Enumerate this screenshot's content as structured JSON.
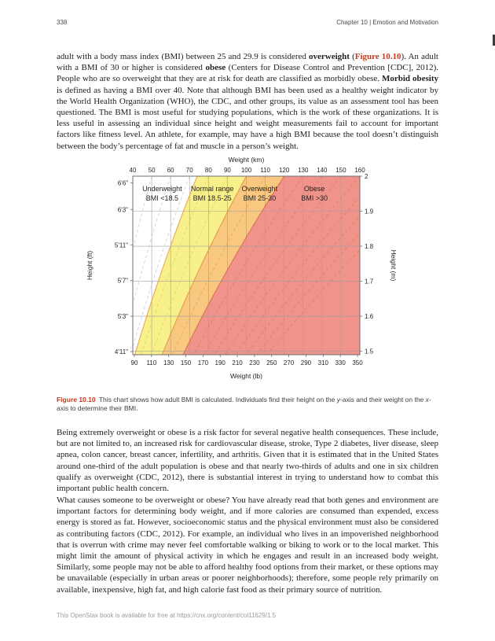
{
  "theme": {
    "accent_red": "#c13b21",
    "body_text": "#232020",
    "caption_text": "#414042",
    "header_text": "#4a4a4a",
    "footer_text": "#9b9b9b",
    "background": "#ffffff"
  },
  "header": {
    "page_number": "338",
    "chapter_title": "Chapter 10 | Emotion and Motivation"
  },
  "paragraphs": {
    "p1": [
      {
        "t": "adult with a body mass index (BMI) between 25 and 29.9 is considered "
      },
      {
        "t": "overweight",
        "b": 1
      },
      {
        "t": " ("
      },
      {
        "t": "Figure 10.10",
        "b": 1,
        "r": 1,
        "link": "figure-10-10-reference"
      },
      {
        "t": "). An adult with a BMI of 30 or higher is considered "
      },
      {
        "t": "obese",
        "b": 1
      },
      {
        "t": " (Centers for Disease Control and Prevention [CDC], 2012). People who are so overweight that they are at risk for death are classified as morbidly obese. "
      },
      {
        "t": "Morbid obesity",
        "b": 1
      },
      {
        "t": " is defined as having a BMI over 40. Note that although BMI has been used as a healthy weight indicator by the World Health Organization (WHO), the CDC, and other groups, its value as an assessment tool has been questioned. The BMI is most useful for studying populations, which is the work of these organizations. It is less useful in assessing an individual since height and weight measurements fail to account for important factors like fitness level. An athlete, for example, may have a high BMI because the tool doesn’t distinguish between the body’s percentage of fat and muscle in a person’s weight."
      }
    ],
    "p2": [
      {
        "t": "Being extremely overweight or obese is a risk factor for several negative health consequences. These include, but are not limited to, an increased risk for cardiovascular disease, stroke, Type 2 diabetes, liver disease, sleep apnea, colon cancer, breast cancer, infertility, and arthritis. Given that it is estimated that in the United States around one-third of the adult population is obese and that nearly two-thirds of adults and one in six children qualify as overweight (CDC, 2012), there is substantial interest in trying to understand how to combat this important public health concern."
      }
    ],
    "p3": [
      {
        "t": "What causes someone to be overweight or obese? You have already read that both genes and environment are important factors for determining body weight, and if more calories are consumed than expended, excess energy is stored as fat. However, socioeconomic status and the physical environment must also be considered as contributing factors (CDC, 2012). For example, an individual who lives in an impoverished neighborhood that is overrun with crime may never feel comfortable walking or biking to work or to the local market. This might limit the amount of physical activity in which he engages and result in an increased body weight. Similarly, some people may not be able to afford healthy food options from their market, or these options may be unavailable (especially in urban areas or poorer neighborhoods); therefore, some people rely primarily on available, inexpensive, high fat, and high calorie fast food as their primary source of nutrition."
      }
    ]
  },
  "caption": [
    {
      "t": "Figure 10.10 ",
      "b": 1,
      "r": 1
    },
    {
      "t": "This chart shows how adult BMI is calculated. Individuals find their height on the "
    },
    {
      "t": "y",
      "i": 1
    },
    {
      "t": "-axis and their weight on the "
    },
    {
      "t": "x",
      "i": 1
    },
    {
      "t": "-axis to determine their BMI."
    }
  ],
  "footer": [
    {
      "t": "This OpenStax book is available for free at "
    },
    {
      "t": "https://cnx.org/content/col11629/1.5",
      "link": "footer-cnx-url"
    }
  ],
  "chart_data": {
    "type": "area",
    "description": "Adult BMI nomogram: body weight vs height divided into BMI category regions",
    "top_axis": {
      "title": "Weight (km)",
      "ticks": [
        40,
        50,
        60,
        70,
        80,
        90,
        100,
        110,
        120,
        130,
        140,
        150,
        160
      ],
      "range": [
        40,
        160
      ]
    },
    "bottom_axis": {
      "title": "Weight (lb)",
      "ticks": [
        90,
        110,
        130,
        150,
        170,
        190,
        210,
        230,
        250,
        270,
        290,
        310,
        330,
        350
      ],
      "range": [
        90,
        350
      ],
      "kg_per_lb": 0.45359
    },
    "left_axis": {
      "title": "Height (ft)",
      "ticks": [
        {
          "label": "6'6\"",
          "m": 1.981
        },
        {
          "label": "6'3\"",
          "m": 1.905
        },
        {
          "label": "5'11\"",
          "m": 1.803
        },
        {
          "label": "5'7\"",
          "m": 1.702
        },
        {
          "label": "5'3\"",
          "m": 1.6
        },
        {
          "label": "4'11\"",
          "m": 1.499
        }
      ]
    },
    "right_axis": {
      "title": "Height (m)",
      "ticks": [
        2,
        1.9,
        1.8,
        1.7,
        1.6,
        1.5
      ],
      "range": [
        1.49,
        2.0
      ]
    },
    "regions": [
      {
        "name": "underweight",
        "label": [
          "Underweight",
          "BMI <18.5"
        ],
        "bmi_min": null,
        "bmi_max": 18.5,
        "fill": "#ffffff",
        "label_kg": 55.5
      },
      {
        "name": "normal",
        "label": [
          "Normal range",
          "BMI 18.5-25"
        ],
        "bmi_min": 18.5,
        "bmi_max": 25,
        "fill": "#f8f08a",
        "label_kg": 82
      },
      {
        "name": "overweight",
        "label": [
          "Overweight",
          "BMI 25-30"
        ],
        "bmi_min": 25,
        "bmi_max": 30,
        "fill": "#f8c780",
        "label_kg": 107
      },
      {
        "name": "obese",
        "label": [
          "Obese",
          "BMI >30"
        ],
        "bmi_min": 30,
        "bmi_max": null,
        "fill": "#f0938a",
        "label_kg": 136
      }
    ],
    "boundaries": [
      {
        "bmi": 18.5,
        "color": "#e9a94f"
      },
      {
        "bmi": 25,
        "color": "#e9974d"
      },
      {
        "bmi": 30,
        "color": "#dd6f55"
      }
    ],
    "isolines": [
      {
        "bmi": 12.5,
        "color": "#cfd2da"
      },
      {
        "bmi": 15,
        "color": "#cfd2da"
      },
      {
        "bmi": 17.5,
        "color": "#cfd2da"
      },
      {
        "bmi": 20,
        "color": "#e6d75e"
      },
      {
        "bmi": 22.5,
        "color": "#e6d75e"
      },
      {
        "bmi": 27.5,
        "color": "#eaa95e"
      },
      {
        "bmi": 32.5,
        "color": "#e27e6d"
      },
      {
        "bmi": 35,
        "color": "#e27e6d"
      },
      {
        "bmi": 37.5,
        "color": "#e27e6d"
      },
      {
        "bmi": 40,
        "color": "#e27e6d"
      },
      {
        "bmi": 42.5,
        "color": "#e27e6d"
      },
      {
        "bmi": 45,
        "color": "#e27e6d"
      },
      {
        "bmi": 47.5,
        "color": "#e27e6d"
      },
      {
        "bmi": 50,
        "color": "#e27e6d"
      }
    ],
    "grid_color": "#9aa0a6",
    "border_color": "#6b6f76",
    "text_color": "#231f20"
  }
}
